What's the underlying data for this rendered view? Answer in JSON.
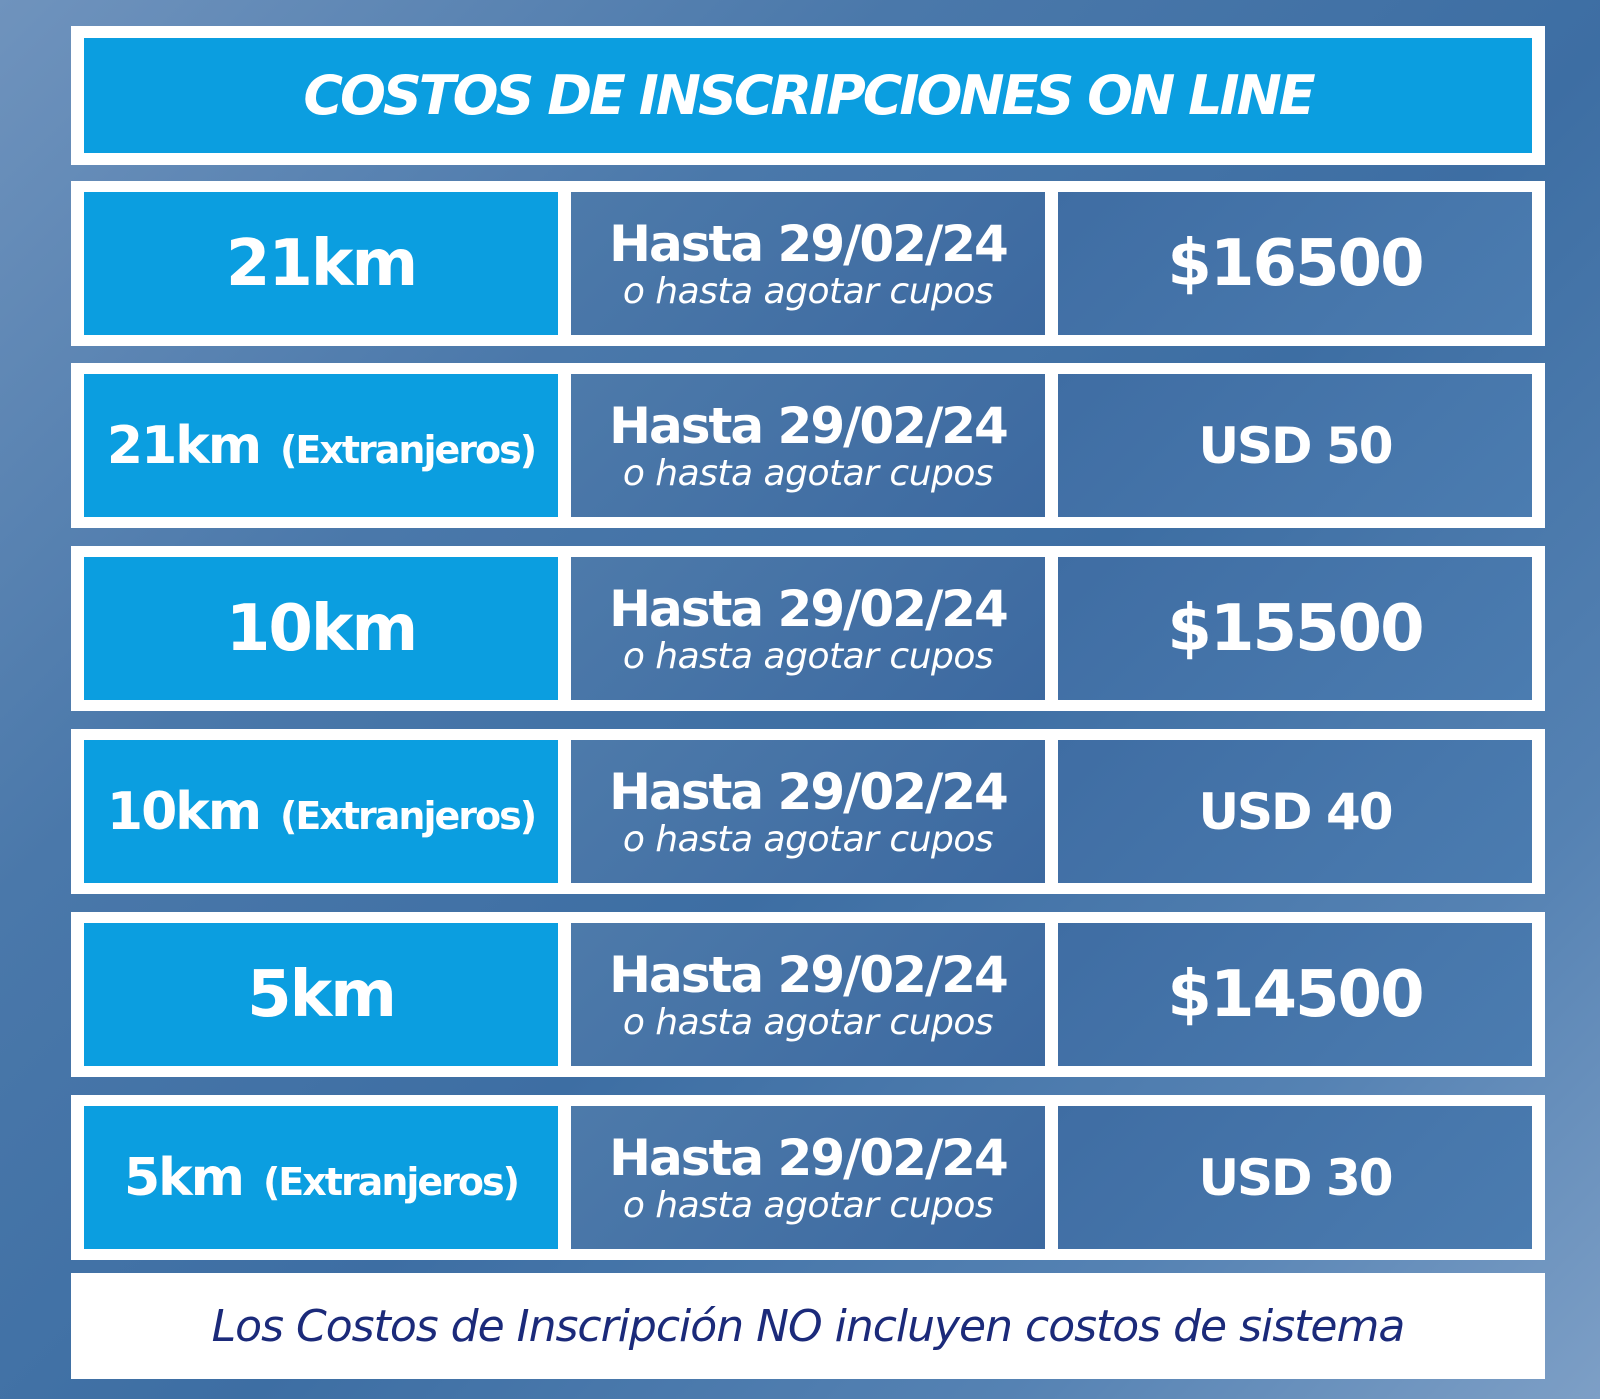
{
  "title": "COSTOS DE INSCRIPCIONES ON LINE",
  "rows": [
    {
      "distance": "21km",
      "extra": "",
      "until": "Hasta 29/02/24",
      "note": "o hasta agotar cupos",
      "price": "$16500"
    },
    {
      "distance": "21km",
      "extra": "(Extranjeros)",
      "until": "Hasta 29/02/24",
      "note": "o hasta agotar cupos",
      "price": "USD 50"
    },
    {
      "distance": "10km",
      "extra": "",
      "until": "Hasta 29/02/24",
      "note": "o hasta agotar cupos",
      "price": "$15500"
    },
    {
      "distance": "10km",
      "extra": "(Extranjeros)",
      "until": "Hasta 29/02/24",
      "note": "o hasta agotar cupos",
      "price": "USD 40"
    },
    {
      "distance": "5km",
      "extra": "",
      "until": "Hasta 29/02/24",
      "note": "o hasta agotar cupos",
      "price": "$14500"
    },
    {
      "distance": "5km",
      "extra": "(Extranjeros)",
      "until": "Hasta 29/02/24",
      "note": "o hasta agotar cupos",
      "price": "USD 30"
    }
  ],
  "footer": "Los Costos de Inscripción NO incluyen costos de sistema",
  "colors": {
    "accent": "#0b9ee0",
    "footer_text": "#1b2a7a"
  }
}
